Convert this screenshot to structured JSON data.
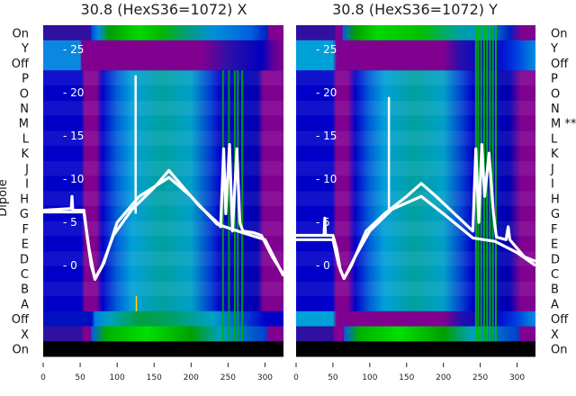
{
  "chart_data": [
    {
      "type": "heatmap",
      "title": "30.8 (HexS36=1072) X",
      "ylabel": "Dipole",
      "row_labels": [
        "On",
        "Y",
        "Off",
        "P",
        "O",
        "N",
        "M",
        "L",
        "K",
        "J",
        "I",
        "H",
        "G",
        "F",
        "E",
        "D",
        "C",
        "B",
        "A",
        "Off",
        "X",
        "On"
      ],
      "xlim": [
        0,
        325
      ],
      "x_ticks": [
        "0",
        "50",
        "100",
        "150",
        "200",
        "250",
        "300"
      ],
      "inner_y_ticks": [
        "25",
        "20",
        "15",
        "10",
        "5",
        "0"
      ],
      "inner_ylim": [
        -10.5,
        27.8
      ],
      "row_profiles": {
        "top_on": [
          [
            0,
            "#3010a0"
          ],
          [
            64,
            "#3010a0"
          ],
          [
            66,
            "#0050e0"
          ],
          [
            75,
            "#0090d8"
          ],
          [
            90,
            "#00a000"
          ],
          [
            130,
            "#00d800"
          ],
          [
            160,
            "#00b800"
          ],
          [
            190,
            "#00a070"
          ],
          [
            230,
            "#0090d8"
          ],
          [
            280,
            "#0060e0"
          ],
          [
            303,
            "#0020c0"
          ],
          [
            305,
            "#800090"
          ],
          [
            325,
            "#800090"
          ]
        ],
        "y_off": [
          [
            0,
            "#0a88e0"
          ],
          [
            50,
            "#0a88e0"
          ],
          [
            52,
            "#800090"
          ],
          [
            215,
            "#800090"
          ],
          [
            250,
            "#3010a8"
          ],
          [
            295,
            "#0000c0"
          ],
          [
            312,
            "#600098"
          ],
          [
            325,
            "#800090"
          ]
        ],
        "mid": [
          [
            0,
            "#0000c8"
          ],
          [
            52,
            "#0000c8"
          ],
          [
            56,
            "#800090"
          ],
          [
            72,
            "#800090"
          ],
          [
            80,
            "#0000c8"
          ],
          [
            100,
            "#0060d8"
          ],
          [
            120,
            "#00a0d8"
          ],
          [
            160,
            "#00a0a0"
          ],
          [
            200,
            "#00a0c8"
          ],
          [
            225,
            "#0040d0"
          ],
          [
            240,
            "#0000c8"
          ],
          [
            290,
            "#0000b0"
          ],
          [
            298,
            "#800090"
          ],
          [
            325,
            "#800090"
          ]
        ],
        "bottom_off": [
          [
            0,
            "#0010c0"
          ],
          [
            66,
            "#0010c0"
          ],
          [
            70,
            "#0080e0"
          ],
          [
            90,
            "#00a0c0"
          ],
          [
            130,
            "#00a040"
          ],
          [
            170,
            "#00a060"
          ],
          [
            230,
            "#00a0c8"
          ],
          [
            260,
            "#0060d8"
          ],
          [
            300,
            "#0000c8"
          ],
          [
            325,
            "#0000c8"
          ]
        ],
        "x_row": [
          [
            0,
            "#3010a0"
          ],
          [
            52,
            "#3010a0"
          ],
          [
            54,
            "#800090"
          ],
          [
            64,
            "#800090"
          ],
          [
            66,
            "#0060e0"
          ],
          [
            85,
            "#00b000"
          ],
          [
            140,
            "#00e000"
          ],
          [
            200,
            "#00a000"
          ],
          [
            240,
            "#00a0c0"
          ],
          [
            300,
            "#0040d0"
          ],
          [
            306,
            "#800090"
          ],
          [
            325,
            "#800090"
          ]
        ]
      },
      "green_stripes": [
        242,
        250,
        258,
        262,
        268
      ],
      "traces": [
        {
          "points": [
            [
              0,
              6.4
            ],
            [
              38,
              6.6
            ],
            [
              39,
              8
            ],
            [
              40,
              6.4
            ],
            [
              55,
              6.4
            ],
            [
              60,
              3
            ],
            [
              65,
              0
            ],
            [
              70,
              -1.5
            ],
            [
              80,
              0
            ],
            [
              95,
              3.5
            ],
            [
              120,
              6.5
            ],
            [
              150,
              9
            ],
            [
              170,
              11
            ],
            [
              190,
              9
            ],
            [
              210,
              7
            ],
            [
              235,
              5
            ],
            [
              240,
              4.5
            ],
            [
              244,
              13.5
            ],
            [
              247,
              6
            ],
            [
              252,
              14
            ],
            [
              256,
              4
            ],
            [
              262,
              13.5
            ],
            [
              266,
              5
            ],
            [
              270,
              4
            ],
            [
              285,
              3.8
            ],
            [
              295,
              3.5
            ],
            [
              310,
              1
            ],
            [
              325,
              -1
            ]
          ]
        },
        {
          "points": [
            [
              0,
              6.2
            ],
            [
              55,
              6.2
            ],
            [
              62,
              2
            ],
            [
              70,
              -1.6
            ],
            [
              82,
              0.3
            ],
            [
              100,
              5
            ],
            [
              130,
              8
            ],
            [
              170,
              10.2
            ],
            [
              200,
              8
            ],
            [
              235,
              4.8
            ],
            [
              270,
              3.8
            ],
            [
              300,
              3
            ],
            [
              325,
              -1.2
            ]
          ]
        }
      ],
      "spikes": [
        {
          "x": 125,
          "top": 22
        },
        {
          "x": 126,
          "top_marker": "yellow"
        }
      ]
    },
    {
      "type": "heatmap",
      "title": "30.8 (HexS36=1072) Y",
      "row_labels": [
        "On",
        "Y",
        "Off",
        "P",
        "O",
        "N",
        "M **",
        "L",
        "K",
        "J",
        "I",
        "H",
        "G",
        "F",
        "E",
        "D",
        "C",
        "B",
        "A",
        "Off",
        "X",
        "On"
      ],
      "xlim": [
        0,
        325
      ],
      "x_ticks": [
        "0",
        "50",
        "100",
        "150",
        "200",
        "250",
        "300"
      ],
      "inner_y_ticks": [
        "25",
        "20",
        "15",
        "10",
        "5",
        "0"
      ],
      "inner_ylim": [
        -10.5,
        27.8
      ],
      "row_profiles": {
        "top_on": [
          [
            0,
            "#3010a0"
          ],
          [
            52,
            "#3010a0"
          ],
          [
            54,
            "#800090"
          ],
          [
            62,
            "#800090"
          ],
          [
            64,
            "#0060e0"
          ],
          [
            80,
            "#00a000"
          ],
          [
            110,
            "#00d800"
          ],
          [
            170,
            "#00c000"
          ],
          [
            220,
            "#00a0a0"
          ],
          [
            260,
            "#0090d8"
          ],
          [
            290,
            "#0020c0"
          ],
          [
            306,
            "#800090"
          ],
          [
            325,
            "#800090"
          ]
        ],
        "y_off": [
          [
            0,
            "#00a0d8"
          ],
          [
            50,
            "#00a0d8"
          ],
          [
            55,
            "#800090"
          ],
          [
            200,
            "#800090"
          ],
          [
            225,
            "#2010b0"
          ],
          [
            270,
            "#0000c8"
          ],
          [
            300,
            "#0040e0"
          ],
          [
            325,
            "#0090e0"
          ]
        ],
        "mid": [
          [
            0,
            "#0000c8"
          ],
          [
            50,
            "#0000c8"
          ],
          [
            54,
            "#800090"
          ],
          [
            70,
            "#800090"
          ],
          [
            80,
            "#0000c8"
          ],
          [
            100,
            "#0060d8"
          ],
          [
            120,
            "#00a0d8"
          ],
          [
            160,
            "#00a0a0"
          ],
          [
            200,
            "#00a0c8"
          ],
          [
            225,
            "#0040d0"
          ],
          [
            240,
            "#0000c8"
          ],
          [
            290,
            "#0000b0"
          ],
          [
            305,
            "#800090"
          ],
          [
            325,
            "#800090"
          ]
        ],
        "bottom_off": [
          [
            0,
            "#00a0d8"
          ],
          [
            50,
            "#00a0d8"
          ],
          [
            55,
            "#800090"
          ],
          [
            200,
            "#800090"
          ],
          [
            225,
            "#2010b0"
          ],
          [
            270,
            "#0000c8"
          ],
          [
            300,
            "#0040e0"
          ],
          [
            325,
            "#0090e0"
          ]
        ],
        "x_row": [
          [
            0,
            "#3010a0"
          ],
          [
            50,
            "#3010a0"
          ],
          [
            52,
            "#800090"
          ],
          [
            64,
            "#800090"
          ],
          [
            66,
            "#0060e0"
          ],
          [
            85,
            "#00b000"
          ],
          [
            140,
            "#00e000"
          ],
          [
            200,
            "#00a000"
          ],
          [
            240,
            "#00a0c0"
          ],
          [
            300,
            "#0040d0"
          ],
          [
            306,
            "#800090"
          ],
          [
            325,
            "#800090"
          ]
        ]
      },
      "green_stripes": [
        243,
        246,
        250,
        254,
        258,
        262,
        266,
        270
      ],
      "traces": [
        {
          "points": [
            [
              0,
              3.5
            ],
            [
              38,
              3.5
            ],
            [
              39,
              5.5
            ],
            [
              40,
              3.5
            ],
            [
              50,
              3.5
            ],
            [
              55,
              2
            ],
            [
              60,
              -0.5
            ],
            [
              65,
              -1.5
            ],
            [
              75,
              0
            ],
            [
              95,
              4
            ],
            [
              120,
              6
            ],
            [
              150,
              8
            ],
            [
              170,
              9.5
            ],
            [
              190,
              8
            ],
            [
              215,
              6
            ],
            [
              240,
              4
            ],
            [
              244,
              13.5
            ],
            [
              248,
              5
            ],
            [
              252,
              14
            ],
            [
              256,
              8
            ],
            [
              262,
              13
            ],
            [
              268,
              6
            ],
            [
              272,
              3.3
            ],
            [
              285,
              3
            ],
            [
              288,
              4.5
            ],
            [
              290,
              3
            ],
            [
              300,
              2
            ],
            [
              310,
              1
            ],
            [
              325,
              0.5
            ]
          ]
        },
        {
          "points": [
            [
              0,
              3
            ],
            [
              50,
              3
            ],
            [
              58,
              0
            ],
            [
              65,
              -1.5
            ],
            [
              80,
              1
            ],
            [
              100,
              4
            ],
            [
              130,
              6.5
            ],
            [
              170,
              8
            ],
            [
              200,
              6
            ],
            [
              240,
              3.2
            ],
            [
              270,
              2.8
            ],
            [
              300,
              1.5
            ],
            [
              325,
              0
            ]
          ]
        }
      ],
      "spikes": [
        {
          "x": 126,
          "top": 19.5
        }
      ]
    }
  ]
}
